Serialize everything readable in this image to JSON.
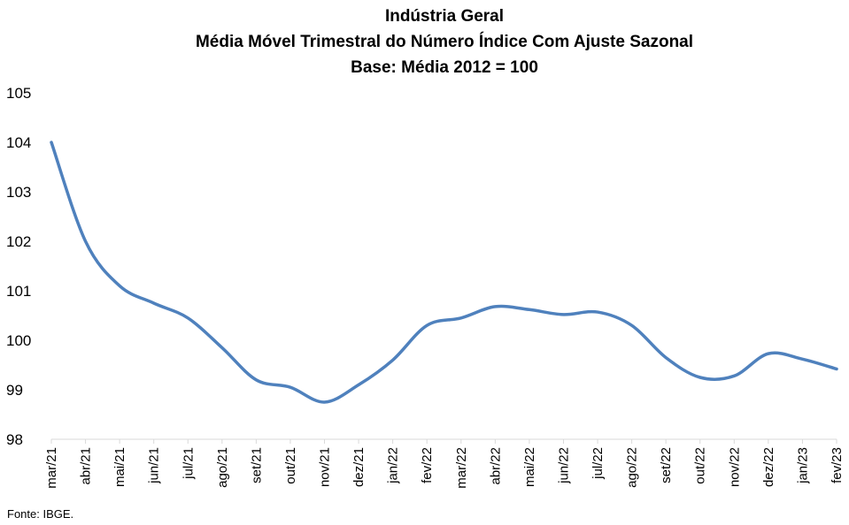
{
  "chart_data": {
    "type": "line",
    "title": [
      "Indústria Geral",
      "Média Móvel Trimestral do Número Índice Com Ajuste Sazonal",
      "Base: Média 2012 = 100"
    ],
    "xlabel": "",
    "ylabel": "",
    "categories": [
      "mar/21",
      "abr/21",
      "mai/21",
      "jun/21",
      "jul/21",
      "ago/21",
      "set/21",
      "out/21",
      "nov/21",
      "dez/21",
      "jan/22",
      "fev/22",
      "mar/22",
      "abr/22",
      "mai/22",
      "jun/22",
      "jul/22",
      "ago/22",
      "set/22",
      "out/22",
      "nov/22",
      "dez/22",
      "jan/23",
      "fev/23"
    ],
    "series": [
      {
        "name": "",
        "color": "#4f81bd",
        "values": [
          104.0,
          102.0,
          101.1,
          100.75,
          100.45,
          99.85,
          99.2,
          99.05,
          98.75,
          99.1,
          99.6,
          100.3,
          100.45,
          100.68,
          100.62,
          100.52,
          100.57,
          100.3,
          99.65,
          99.25,
          99.28,
          99.73,
          99.62,
          99.42
        ]
      }
    ],
    "ylim": [
      98,
      105
    ],
    "yticks": [
      98,
      99,
      100,
      101,
      102,
      103,
      104,
      105
    ],
    "grid": false,
    "legend": "none"
  },
  "source": "Fonte: IBGE."
}
